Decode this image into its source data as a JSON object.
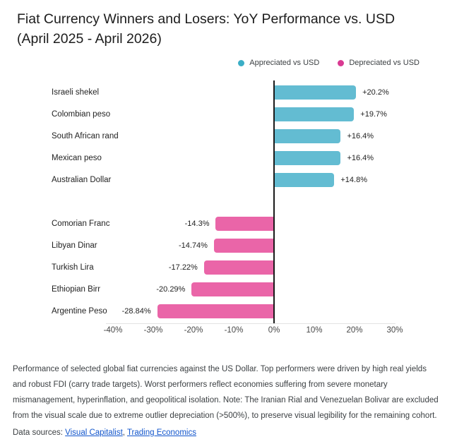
{
  "title": {
    "line1": "Fiat Currency Winners and Losers: YoY Performance vs. USD",
    "line2": "(April 2025 - April 2026)"
  },
  "legend": [
    {
      "label": "Appreciated vs USD",
      "color": "#3baec6"
    },
    {
      "label": "Depreciated vs USD",
      "color": "#d93a92"
    }
  ],
  "chart_data": {
    "type": "bar",
    "orientation": "horizontal",
    "unit": "%",
    "xlabel": "",
    "ylabel": "",
    "xlim": [
      -40,
      30
    ],
    "grid": false,
    "legend_position": "top-right",
    "series": [
      {
        "name": "Appreciated vs USD",
        "color": "#63bcd2",
        "items": [
          {
            "label": "Israeli shekel",
            "value": 20.2,
            "value_label": "+20.2%"
          },
          {
            "label": "Colombian peso",
            "value": 19.7,
            "value_label": "+19.7%"
          },
          {
            "label": "South African rand",
            "value": 16.4,
            "value_label": "+16.4%"
          },
          {
            "label": "Mexican peso",
            "value": 16.4,
            "value_label": "+16.4%"
          },
          {
            "label": "Australian Dollar",
            "value": 14.8,
            "value_label": "+14.8%"
          }
        ]
      },
      {
        "name": "Depreciated vs USD",
        "color": "#ea65a8",
        "items": [
          {
            "label": "Comorian Franc",
            "value": -14.3,
            "value_label": "-14.3%"
          },
          {
            "label": "Libyan Dinar",
            "value": -14.74,
            "value_label": "-14.74%"
          },
          {
            "label": "Turkish Lira",
            "value": -17.22,
            "value_label": "-17.22%"
          },
          {
            "label": "Ethiopian Birr",
            "value": -20.29,
            "value_label": "-20.29%"
          },
          {
            "label": "Argentine Peso",
            "value": -28.84,
            "value_label": "-28.84%"
          }
        ]
      }
    ],
    "x_ticks": [
      "-40%",
      "-30%",
      "-20%",
      "-10%",
      "0%",
      "10%",
      "20%",
      "30%"
    ],
    "x_tick_values": [
      -40,
      -30,
      -20,
      -10,
      0,
      10,
      20,
      30
    ]
  },
  "footnote": "Performance of selected global fiat currencies against the US Dollar. Top performers were driven by high real yields and robust FDI (carry trade targets). Worst performers reflect economies suffering from severe monetary mismanagement, hyperinflation, and geopolitical isolation. Note: The Iranian Rial and Venezuelan Bolivar are excluded from the visual scale due to extreme outlier depreciation (>500%), to preserve visual legibility for the remaining cohort.",
  "sources": {
    "prefix": "Data sources: ",
    "separator": ", ",
    "links": [
      {
        "label": "Visual Capitalist"
      },
      {
        "label": "Trading Economics"
      }
    ]
  }
}
